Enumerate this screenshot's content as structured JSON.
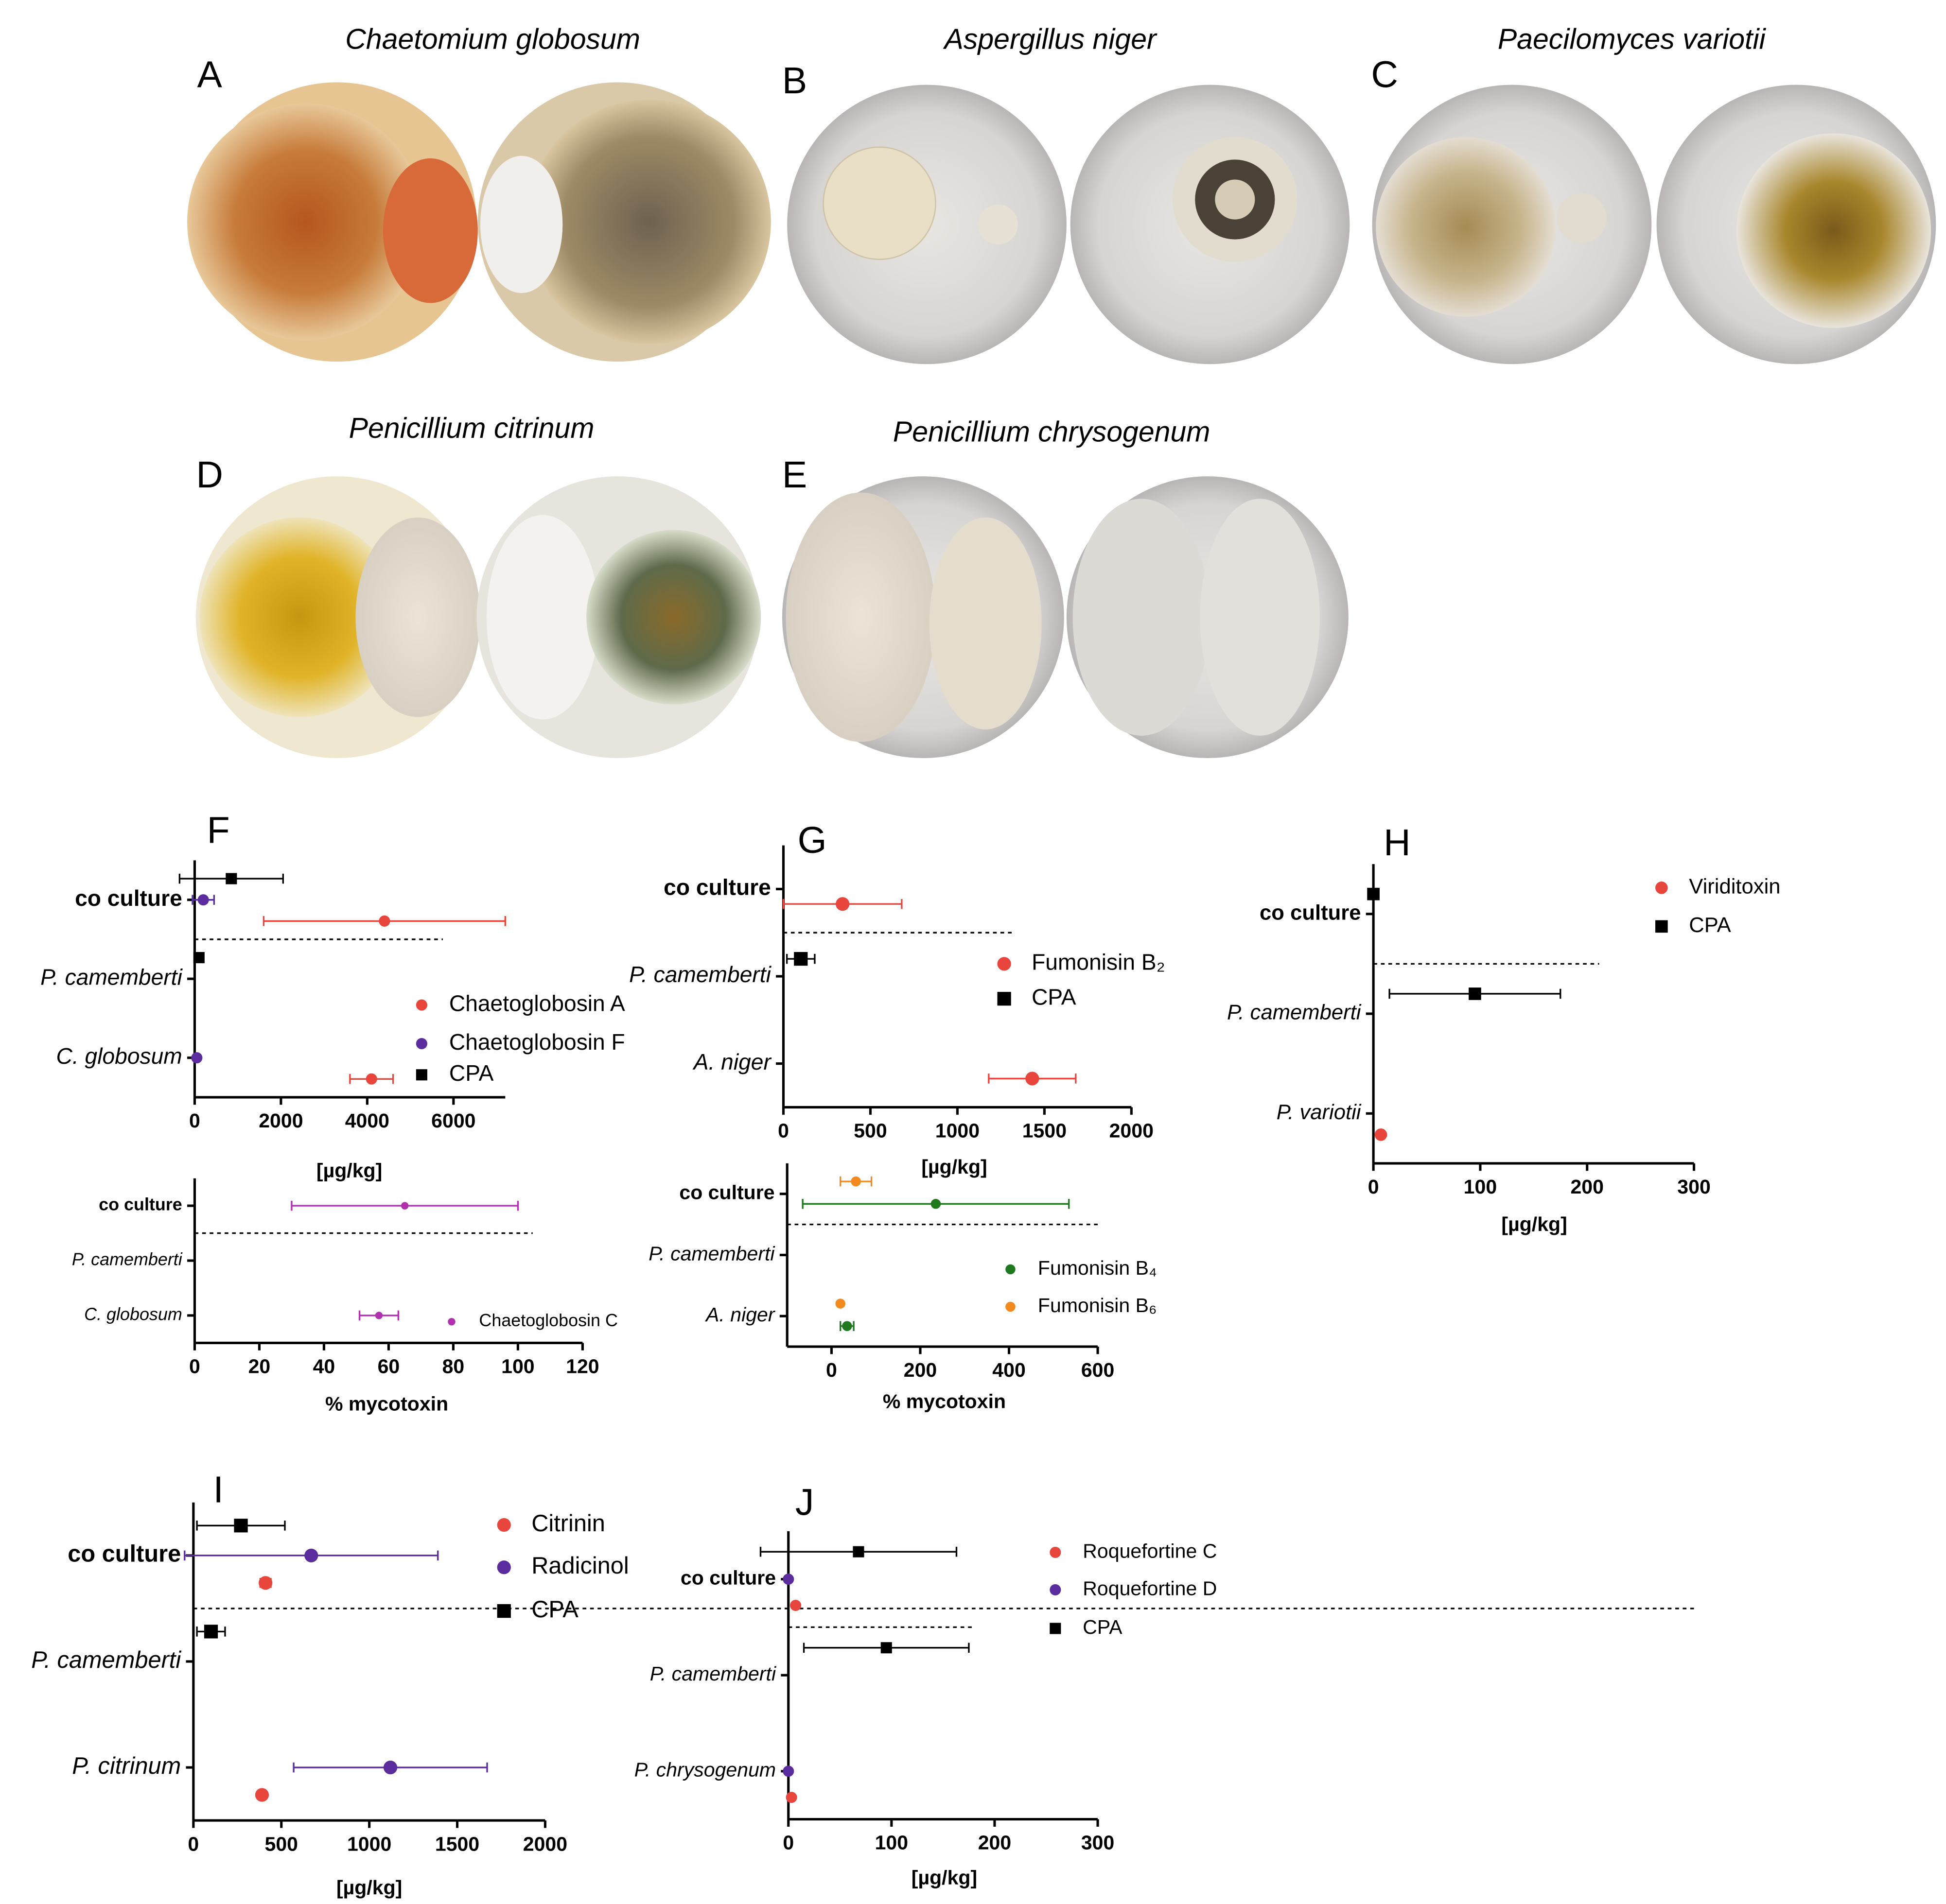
{
  "figure": {
    "panels": [
      {
        "letter": "A",
        "title": "Chaetomium globosum"
      },
      {
        "letter": "B",
        "title": "Aspergillus niger"
      },
      {
        "letter": "C",
        "title": "Paecilomyces variotii"
      },
      {
        "letter": "D",
        "title": "Penicillium citrinum"
      },
      {
        "letter": "E",
        "title": "Penicillium chrysogenum"
      }
    ]
  },
  "chart_data": [
    {
      "type": "dot",
      "panel": "F",
      "categories": [
        "co culture",
        "P. camemberti",
        "C. globosum"
      ],
      "xlabel": "[µg/kg]",
      "xlim": [
        0,
        7200
      ],
      "xticks": [
        0,
        2000,
        4000,
        6000
      ],
      "series": [
        {
          "name": "Chaetoglobosin A",
          "color": "#e8453c",
          "marker": "circle",
          "values": [
            4400,
            null,
            4100
          ],
          "errors": [
            2800,
            null,
            500
          ]
        },
        {
          "name": "Chaetoglobosin F",
          "color": "#5b2c9e",
          "marker": "circle",
          "values": [
            200,
            null,
            50
          ],
          "errors": [
            250,
            null,
            null
          ]
        },
        {
          "name": "CPA",
          "color": "#000000",
          "marker": "square",
          "values": [
            850,
            100,
            null
          ],
          "errors": [
            1200,
            null,
            null
          ]
        }
      ]
    },
    {
      "type": "dot",
      "categories": [
        "co culture",
        "P. camemberti",
        "C. globosum"
      ],
      "xlabel": "% mycotoxin",
      "xlim": [
        0,
        120
      ],
      "xticks": [
        0,
        20,
        40,
        60,
        80,
        100,
        120
      ],
      "series": [
        {
          "name": "Chaetoglobosin C",
          "color": "#b030b0",
          "marker": "circle",
          "values": [
            65,
            null,
            57
          ],
          "errors": [
            35,
            null,
            6
          ]
        }
      ]
    },
    {
      "type": "dot",
      "panel": "G",
      "categories": [
        "co culture",
        "P. camemberti",
        "A. niger"
      ],
      "xlabel": "[µg/kg]",
      "xlim": [
        0,
        2000
      ],
      "xticks": [
        0,
        500,
        1000,
        1500,
        2000
      ],
      "series": [
        {
          "name": "Fumonisin B₂",
          "color": "#e8453c",
          "marker": "circle",
          "values": [
            340,
            null,
            1430
          ],
          "errors": [
            340,
            null,
            250
          ]
        },
        {
          "name": "CPA",
          "color": "#000000",
          "marker": "square",
          "values": [
            null,
            100,
            null
          ],
          "errors": [
            null,
            80,
            null
          ]
        }
      ]
    },
    {
      "type": "dot",
      "categories": [
        "co culture",
        "P. camemberti",
        "A. niger"
      ],
      "xlabel": "% mycotoxin",
      "xlim": [
        -100,
        600
      ],
      "xticks": [
        0,
        200,
        400,
        600
      ],
      "series": [
        {
          "name": "Fumonisin B₄",
          "color": "#1f7a1f",
          "marker": "circle",
          "values": [
            235,
            null,
            35
          ],
          "errors": [
            300,
            null,
            15
          ]
        },
        {
          "name": "Fumonisin B₆",
          "color": "#f28a1e",
          "marker": "circle",
          "values": [
            55,
            null,
            20
          ],
          "errors": [
            35,
            null,
            null
          ]
        }
      ]
    },
    {
      "type": "dot",
      "panel": "H",
      "categories": [
        "co culture",
        "P. camemberti",
        "P. variotii"
      ],
      "xlabel": "[µg/kg]",
      "xlim": [
        0,
        300
      ],
      "xticks": [
        0,
        100,
        200,
        300
      ],
      "series": [
        {
          "name": "Viriditoxin",
          "color": "#e8453c",
          "marker": "circle",
          "values": [
            null,
            null,
            7
          ],
          "errors": [
            null,
            null,
            null
          ]
        },
        {
          "name": "CPA",
          "color": "#000000",
          "marker": "square",
          "values": [
            0,
            95,
            null
          ],
          "errors": [
            null,
            80,
            null
          ]
        }
      ]
    },
    {
      "type": "dot",
      "panel": "I",
      "categories": [
        "co culture",
        "P. camemberti",
        "P. citrinum"
      ],
      "xlabel": "[µg/kg]",
      "xlim": [
        0,
        2000
      ],
      "xticks": [
        0,
        500,
        1000,
        1500,
        2000
      ],
      "series": [
        {
          "name": "Citrinin",
          "color": "#e8453c",
          "marker": "circle",
          "values": [
            410,
            null,
            390
          ],
          "errors": [
            30,
            null,
            null
          ]
        },
        {
          "name": "Radicinol",
          "color": "#5b2c9e",
          "marker": "circle",
          "values": [
            670,
            null,
            1120
          ],
          "errors": [
            720,
            null,
            550
          ]
        },
        {
          "name": "CPA",
          "color": "#000000",
          "marker": "square",
          "values": [
            270,
            100,
            null
          ],
          "errors": [
            250,
            80,
            null
          ]
        }
      ]
    },
    {
      "type": "dot",
      "panel": "J",
      "categories": [
        "co culture",
        "P. camemberti",
        "P. chrysogenum"
      ],
      "xlabel": "[µg/kg]",
      "xlim": [
        0,
        300
      ],
      "xticks": [
        0,
        100,
        200,
        300
      ],
      "series": [
        {
          "name": "Roquefortine C",
          "color": "#e8453c",
          "marker": "circle",
          "values": [
            7,
            null,
            3
          ],
          "errors": [
            null,
            null,
            null
          ]
        },
        {
          "name": "Roquefortine D",
          "color": "#5b2c9e",
          "marker": "circle",
          "values": [
            0,
            null,
            0
          ],
          "errors": [
            null,
            null,
            null
          ]
        },
        {
          "name": "CPA",
          "color": "#000000",
          "marker": "square",
          "values": [
            68,
            95,
            null
          ],
          "errors": [
            95,
            80,
            null
          ]
        }
      ]
    }
  ]
}
